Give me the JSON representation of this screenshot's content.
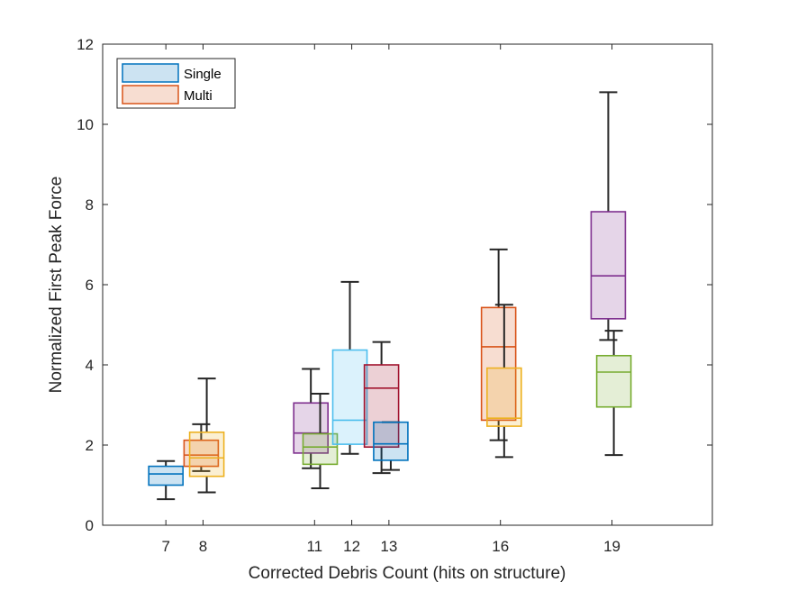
{
  "chart_data": {
    "type": "box",
    "xlabel": "Corrected Debris Count (hits on structure)",
    "ylabel": "Normalized First Peak Force",
    "xlim": [
      5.3,
      21.7
    ],
    "ylim": [
      0,
      12
    ],
    "xticks": [
      7,
      8,
      11,
      12,
      13,
      16,
      19
    ],
    "yticks": [
      0,
      2,
      4,
      6,
      8,
      10,
      12
    ],
    "legend": {
      "placement": "top-left",
      "entries": [
        {
          "label": "Single",
          "color": "#0072BD"
        },
        {
          "label": "Multi",
          "color": "#D95319"
        }
      ]
    },
    "boxes": [
      {
        "x": 7,
        "color": "#0072BD",
        "whisker_low": 0.65,
        "q1": 1.0,
        "median": 1.28,
        "q3": 1.47,
        "whisker_high": 1.6
      },
      {
        "x": 7.95,
        "color": "#D95319",
        "whisker_low": 1.35,
        "q1": 1.47,
        "median": 1.75,
        "q3": 2.12,
        "whisker_high": 2.52
      },
      {
        "x": 8.1,
        "color": "#EDB120",
        "whisker_low": 0.82,
        "q1": 1.22,
        "median": 1.68,
        "q3": 2.32,
        "whisker_high": 3.66
      },
      {
        "x": 10.9,
        "color": "#7E2F8E",
        "whisker_low": 1.42,
        "q1": 1.8,
        "median": 2.3,
        "q3": 3.05,
        "whisker_high": 3.9
      },
      {
        "x": 11.15,
        "color": "#77AC30",
        "whisker_low": 0.92,
        "q1": 1.52,
        "median": 1.95,
        "q3": 2.28,
        "whisker_high": 3.28
      },
      {
        "x": 11.95,
        "color": "#4DBEEE",
        "whisker_low": 1.78,
        "q1": 2.02,
        "median": 2.62,
        "q3": 4.37,
        "whisker_high": 6.07
      },
      {
        "x": 12.8,
        "color": "#A2142F",
        "whisker_low": 1.3,
        "q1": 1.95,
        "median": 3.42,
        "q3": 4.0,
        "whisker_high": 4.57
      },
      {
        "x": 13.05,
        "color": "#0072BD",
        "whisker_low": 1.38,
        "q1": 1.62,
        "median": 2.03,
        "q3": 2.57,
        "whisker_high": 2.57
      },
      {
        "x": 15.95,
        "color": "#D95319",
        "whisker_low": 2.12,
        "q1": 2.62,
        "median": 4.45,
        "q3": 5.43,
        "whisker_high": 6.88
      },
      {
        "x": 16.1,
        "color": "#EDB120",
        "whisker_low": 1.7,
        "q1": 2.47,
        "median": 2.67,
        "q3": 3.92,
        "whisker_high": 5.5
      },
      {
        "x": 18.9,
        "color": "#7E2F8E",
        "whisker_low": 4.62,
        "q1": 5.15,
        "median": 6.22,
        "q3": 7.82,
        "whisker_high": 10.8
      },
      {
        "x": 19.05,
        "color": "#77AC30",
        "whisker_low": 1.75,
        "q1": 2.95,
        "median": 3.82,
        "q3": 4.23,
        "whisker_high": 4.85
      }
    ]
  }
}
